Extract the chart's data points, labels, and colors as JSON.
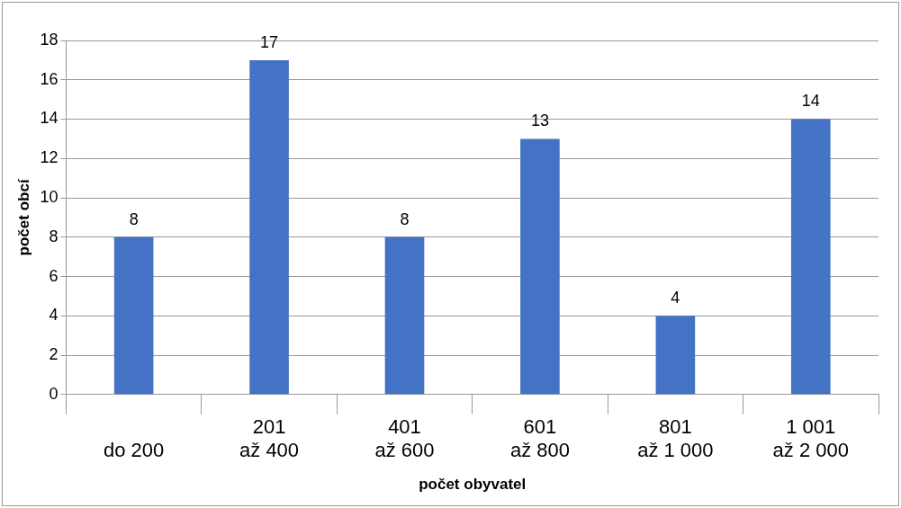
{
  "chart_data": {
    "type": "bar",
    "xlabel": "počet obyvatel",
    "ylabel": "počet obcí",
    "categories": [
      "do 200",
      "201\naž 400",
      "401\naž 600",
      "601\naž 800",
      "801\naž 1 000",
      "1 001\naž 2 000"
    ],
    "values": [
      8,
      17,
      8,
      13,
      4,
      14
    ],
    "color": "#4472c4",
    "ylim": [
      0,
      18
    ],
    "yticks": [
      0,
      2,
      4,
      6,
      8,
      10,
      12,
      14,
      16,
      18
    ],
    "grid": "y",
    "legend": false,
    "data_labels": true
  }
}
